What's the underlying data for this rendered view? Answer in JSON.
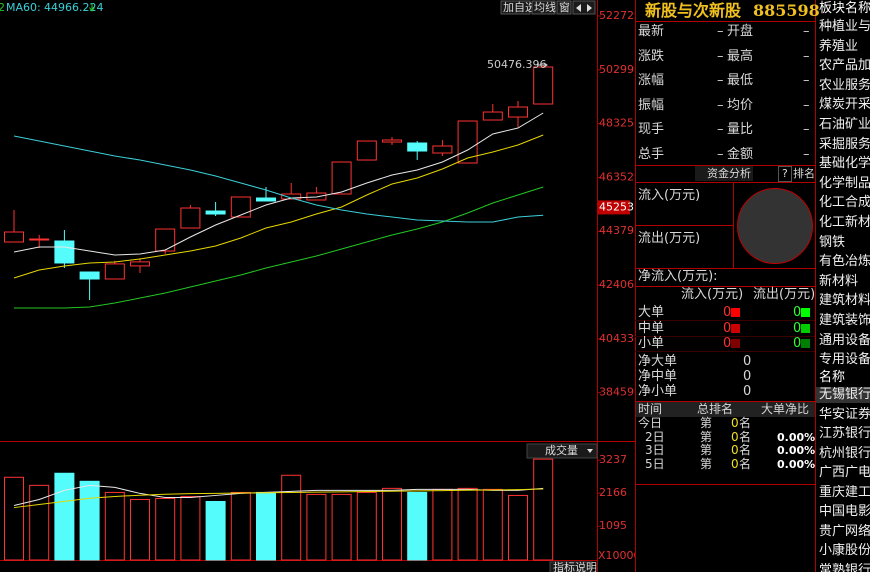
{
  "toolbar": [
    "加自选",
    "均线",
    "窗"
  ],
  "chart_data": [
    {
      "type": "candlestick",
      "up_color": "#ff3232",
      "down_color": "#54fcfc",
      "open": [
        43985,
        44060,
        44021,
        42884,
        42628,
        43108,
        43654,
        44497,
        45121,
        44901,
        45598,
        45561,
        45525,
        45745,
        46991,
        47651,
        47615,
        47248,
        46881,
        48458,
        48568,
        49045
      ],
      "high": [
        45158,
        44241,
        44425,
        42884,
        43300,
        43400,
        44461,
        45341,
        45451,
        45635,
        46001,
        46148,
        46001,
        46918,
        47688,
        47835,
        47688,
        47725,
        48421,
        49045,
        49155,
        50476.396
      ],
      "low": [
        43985,
        43764,
        43031,
        41858,
        42628,
        42850,
        43544,
        44497,
        44938,
        44901,
        45488,
        45561,
        45525,
        45745,
        46991,
        47541,
        46991,
        47138,
        46881,
        48458,
        48201,
        49045
      ],
      "close": [
        44351,
        44094,
        43215,
        42628,
        43181,
        43255,
        44461,
        45231,
        45011,
        45635,
        45488,
        45745,
        45781,
        46918,
        47688,
        47725,
        47321,
        47505,
        48421,
        48751,
        48935,
        50402
      ],
      "series": [
        {
          "color": "#e8e8e8",
          "values": [
            43618,
            43801,
            43801,
            43655,
            43508,
            43545,
            43691,
            44168,
            44608,
            44975,
            45341,
            45598,
            45635,
            45818,
            46148,
            46441,
            46625,
            46918,
            47358,
            47945,
            48165,
            48715
          ]
        },
        {
          "color": "#e6d600",
          "values": [
            42664,
            42958,
            43104,
            43215,
            43251,
            43361,
            43508,
            43655,
            43838,
            44131,
            44498,
            44718,
            45011,
            45268,
            45708,
            46111,
            46331,
            46661,
            47065,
            47285,
            47542,
            47908
          ]
        },
        {
          "name": "2",
          "color": "#22c822",
          "values": [
            41564,
            41564,
            41564,
            41601,
            41748,
            41931,
            42114,
            42334,
            42554,
            42774,
            43031,
            43251,
            43471,
            43728,
            43985,
            44241,
            44461,
            44718,
            45048,
            45415,
            45708,
            46001
          ]
        },
        {
          "name": "MA60:",
          "color": "#3ccfd8",
          "values": [
            47872,
            47688,
            47505,
            47322,
            47138,
            46992,
            46808,
            46625,
            46405,
            46148,
            45891,
            45598,
            45341,
            45158,
            45011,
            44901,
            44791,
            44755,
            44718,
            44718,
            44900,
            44966.224
          ]
        }
      ],
      "ylim": [
        36687,
        52859
      ],
      "yticks": [
        38459,
        40433,
        42406,
        44379,
        46352,
        48325,
        50299,
        52272
      ],
      "last_price_marker": 45253
    },
    {
      "type": "bar",
      "indicator": "成交量",
      "button": "指标说明",
      "unit_label": "X10000",
      "values": [
        2681,
        2420,
        2812,
        2551,
        2191,
        1962,
        1995,
        2060,
        1897,
        2191,
        2191,
        2747,
        2126,
        2126,
        2191,
        2322,
        2191,
        2289,
        2322,
        2289,
        2093,
        3270
      ],
      "series": [
        {
          "color": "#e8e8e8",
          "values": [
            1766,
            1962,
            2256,
            2420,
            2354,
            2158,
            2027,
            2027,
            2093,
            2158,
            2191,
            2223,
            2256,
            2256,
            2256,
            2256,
            2289,
            2289,
            2289,
            2256,
            2256,
            2322
          ]
        },
        {
          "color": "#e6d600",
          "values": [
            1700,
            1800,
            1900,
            2000,
            2060,
            2100,
            2130,
            2150,
            2160,
            2170,
            2180,
            2190,
            2200,
            2210,
            2220,
            2230,
            2240,
            2250,
            2260,
            2270,
            2280,
            2300
          ]
        }
      ],
      "ylim": [
        0,
        3728
      ],
      "yticks": [
        1095,
        2166,
        3237
      ]
    }
  ],
  "quote_panel": {
    "title": "新股与次新股",
    "code": "885598",
    "rows": [
      [
        "最新",
        "–",
        "开盘",
        "–"
      ],
      [
        "涨跌",
        "–",
        "最高",
        "–"
      ],
      [
        "涨幅",
        "–",
        "最低",
        "–"
      ],
      [
        "振幅",
        "–",
        "均价",
        "–"
      ],
      [
        "现手",
        "–",
        "量比",
        "–"
      ],
      [
        "总手",
        "–",
        "金额",
        "–"
      ]
    ]
  },
  "fund_panel": {
    "title": "资金分析",
    "help": "?",
    "rank": "排名",
    "inflow": "流入(万元)",
    "outflow": "流出(万元)",
    "net_title": "净流入(万元):",
    "headers": [
      "流入(万元)",
      "流出(万元)"
    ],
    "rows": [
      [
        "大单",
        0,
        0
      ],
      [
        "中单",
        0,
        0
      ],
      [
        "小单",
        0,
        0
      ]
    ],
    "net_rows": [
      [
        "净大单",
        0
      ],
      [
        "净中单",
        0
      ],
      [
        "净小单",
        0
      ]
    ],
    "rank_headers": [
      "时间",
      "总排名",
      "大单净比"
    ],
    "rank_rows": [
      [
        "今日",
        "第",
        0,
        "名"
      ],
      [
        "2日",
        "第",
        0,
        "名",
        "0.00%"
      ],
      [
        "3日",
        "第",
        0,
        "名",
        "0.00%"
      ],
      [
        "5日",
        "第",
        0,
        "名",
        "0.00%"
      ]
    ]
  },
  "sector_list": {
    "header": "板块名称",
    "items": [
      "种植业与林",
      "养殖业",
      "农产品加工",
      "农业服务",
      "煤炭开采",
      "石油矿业开",
      "采掘服务",
      "基础化学",
      "化学制品",
      "化工合成材",
      "化工新材料",
      "钢铁",
      "有色冶炼加",
      "新材料",
      "建筑材料",
      "建筑装饰",
      "通用设备",
      "专用设备"
    ],
    "stock_header": "名称",
    "stocks": [
      "无锡银行",
      "华安证券",
      "江苏银行",
      "杭州银行",
      "广西广电",
      "重庆建工",
      "中国电影",
      "贵广网络",
      "小康股份",
      "常熟银行"
    ]
  }
}
